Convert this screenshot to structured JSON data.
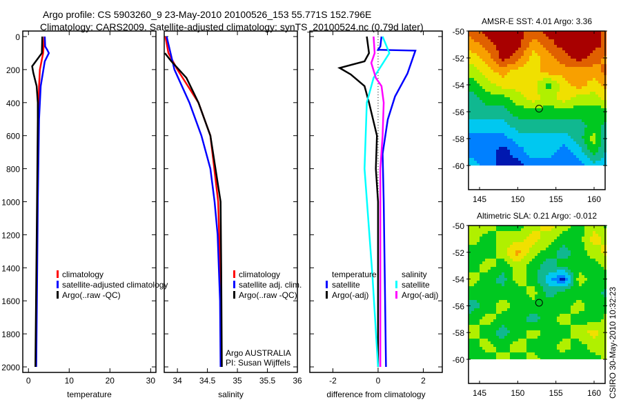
{
  "chart_data": {
    "title_line1": "Argo profile: CS 5903260_9 23-May-2010 20100526_153 55.771S 152.796E",
    "title_line2": "Climatology: CARS2009. Satellite-adjusted climatology: synTS_20100524.nc (0.79d later)",
    "side_label": "CSIRO 30-May-2010 10:32:23",
    "credit": [
      "Argo AUSTRALIA",
      "PI: Susan Wijffels"
    ],
    "colors": {
      "climatology": "#ff0000",
      "satellite": "#0000ff",
      "argo": "#000000",
      "cyan": "#00ffff",
      "magenta": "#ff00ff"
    },
    "profiles": [
      {
        "type": "line",
        "xlabel": "temperature",
        "xlim": [
          -1.4,
          31.3
        ],
        "ylim": [
          0,
          2035
        ],
        "xticks": [
          0,
          10,
          20,
          30
        ],
        "yticks": [
          0,
          200,
          400,
          600,
          800,
          1000,
          1200,
          1400,
          1600,
          1800,
          2000
        ],
        "legend": [
          "climatology",
          "satellite-adjusted climatology",
          "Argo(..raw -QC)"
        ],
        "series": [
          {
            "name": "climatology",
            "color": "#ff0000",
            "depth": [
              0,
              100,
              200,
              300,
              400,
              600,
              1000,
              1400,
              2000
            ],
            "values": [
              3.9,
              3.6,
              2.8,
              2.6,
              2.5,
              2.4,
              2.2,
              2.0,
              1.8
            ]
          },
          {
            "name": "satellite-adjusted climatology",
            "color": "#0000ff",
            "depth": [
              0,
              60,
              80,
              100,
              150,
              300,
              500,
              1000,
              1500,
              2000
            ],
            "values": [
              4.0,
              4.1,
              4.6,
              5.0,
              4.0,
              3.0,
              2.6,
              2.3,
              2.1,
              1.9
            ]
          },
          {
            "name": "Argo(..raw -QC)",
            "color": "#000000",
            "depth": [
              0,
              100,
              150,
              180,
              220,
              300,
              400,
              500,
              1000,
              1500,
              2000
            ],
            "values": [
              3.4,
              3.3,
              1.8,
              0.9,
              1.2,
              2.0,
              2.3,
              2.3,
              2.1,
              1.9,
              1.7
            ]
          }
        ]
      },
      {
        "type": "line",
        "xlabel": "salinity",
        "xlim": [
          33.78,
          36.0
        ],
        "ylim": [
          0,
          2035
        ],
        "xticks": [
          34,
          34.5,
          35,
          35.5,
          36
        ],
        "legend": [
          "climatology",
          "satellite adj. clim.",
          "Argo(..raw -QC)"
        ],
        "series": [
          {
            "name": "climatology",
            "color": "#ff0000",
            "depth": [
              0,
              100,
              200,
              400,
              600,
              1000,
              1500,
              2000
            ],
            "values": [
              33.8,
              33.85,
              34.0,
              34.35,
              34.55,
              34.68,
              34.72,
              34.73
            ]
          },
          {
            "name": "satellite adj. clim.",
            "color": "#0000ff",
            "depth": [
              0,
              200,
              400,
              600,
              800,
              1000,
              1200,
              1600,
              2000
            ],
            "values": [
              33.82,
              33.95,
              34.2,
              34.4,
              34.55,
              34.62,
              34.67,
              34.71,
              34.72
            ]
          },
          {
            "name": "Argo(..raw -QC)",
            "color": "#000000",
            "depth": [
              100,
              150,
              250,
              400,
              600,
              1000,
              1400,
              2000
            ],
            "values": [
              33.79,
              33.9,
              34.15,
              34.35,
              34.55,
              34.72,
              34.73,
              34.74
            ]
          }
        ]
      },
      {
        "type": "line",
        "xlabel": "difference from climatology",
        "xlim": [
          -3.02,
          2.84
        ],
        "ylim": [
          0,
          2035
        ],
        "xticks": [
          -2,
          0,
          2
        ],
        "legend_left": [
          "temperature",
          "satellite",
          "Argo(-adj)"
        ],
        "legend_right": [
          "salinity",
          "satellite",
          "Argo(-adj)"
        ],
        "series": [
          {
            "name": "temperature satellite",
            "color": "#0000ff",
            "depth": [
              0,
              60,
              80,
              85,
              224,
              363,
              502,
              710,
              1000,
              1500,
              2000
            ],
            "values": [
              0.15,
              0.1,
              0.0,
              1.65,
              1.3,
              0.75,
              0.43,
              0.2,
              0.25,
              0.3,
              0.35
            ]
          },
          {
            "name": "temperature Argo(-adj)",
            "color": "#000000",
            "depth": [
              0,
              100,
              150,
              190,
              230,
              300,
              400,
              600,
              800,
              1000,
              2000
            ],
            "values": [
              -0.5,
              -0.4,
              -0.6,
              -1.7,
              -1.2,
              -0.6,
              -0.4,
              -0.05,
              -0.1,
              0,
              0
            ]
          },
          {
            "name": "salinity satellite",
            "color": "#00ffff",
            "depth": [
              0,
              100,
              250,
              400,
              800,
              1450,
              2000
            ],
            "values": [
              0.2,
              0.5,
              -0.2,
              -0.5,
              -0.6,
              -0.25,
              0
            ]
          },
          {
            "name": "salinity Argo(-adj)",
            "color": "#ff00ff",
            "depth": [
              0,
              100,
              160,
              250,
              300,
              400,
              600,
              800,
              1000,
              2000
            ],
            "values": [
              -0.2,
              -0.15,
              -0.3,
              -0.1,
              0.15,
              0.25,
              0.2,
              0.1,
              0.1,
              0.1
            ]
          }
        ]
      }
    ],
    "maps": [
      {
        "type": "heatmap",
        "title": "AMSR-E SST: 4.01 Argo: 3.36",
        "xticks": [
          145,
          150,
          155,
          160
        ],
        "yticks": [
          -50,
          -52,
          -54,
          -56,
          -58,
          -60
        ],
        "lon": [
          144,
          146,
          148,
          150,
          152,
          154,
          156,
          158,
          160,
          162
        ],
        "lat": [
          -50,
          -51,
          -52,
          -53,
          -54,
          -55,
          -56,
          -57,
          -58,
          -59,
          -60
        ],
        "levels": [
          [
            8,
            9,
            9,
            9,
            8,
            9,
            9,
            9,
            9,
            8
          ],
          [
            7,
            8,
            9,
            9,
            7,
            8,
            9,
            9,
            9,
            8
          ],
          [
            6,
            7,
            9,
            8,
            6,
            7,
            8,
            9,
            8,
            7
          ],
          [
            5,
            6,
            7,
            6,
            6,
            7,
            7,
            7,
            7,
            8
          ],
          [
            4,
            5,
            6,
            6,
            6,
            4,
            6,
            7,
            6,
            7
          ],
          [
            3,
            4,
            4,
            5,
            6,
            5,
            6,
            5,
            5,
            6
          ],
          [
            3,
            3,
            3,
            4,
            4,
            4,
            4,
            4,
            4,
            4
          ],
          [
            2,
            2,
            2,
            3,
            3,
            3,
            3,
            3,
            4,
            3
          ],
          [
            1,
            1,
            1,
            2,
            2,
            2,
            2,
            3,
            5,
            2
          ],
          [
            1,
            1,
            0,
            1,
            2,
            2,
            1,
            2,
            4,
            2
          ],
          [
            2,
            1,
            0,
            0,
            1,
            1,
            1,
            1,
            2,
            2
          ]
        ],
        "marker": {
          "lon": 152.796,
          "lat": -55.771
        }
      },
      {
        "type": "heatmap",
        "title": "Altimetric SLA: 0.21 Argo: -0.012",
        "xticks": [
          145,
          150,
          155,
          160
        ],
        "yticks": [
          -50,
          -52,
          -54,
          -56,
          -58,
          -60
        ],
        "lon": [
          144,
          146,
          148,
          150,
          152,
          154,
          156,
          158,
          160,
          162
        ],
        "lat": [
          -50,
          -51,
          -52,
          -53,
          -54,
          -55,
          -56,
          -57,
          -58,
          -59,
          -60
        ],
        "levels": [
          [
            5,
            5,
            4,
            4,
            5,
            6,
            5,
            4,
            5,
            4
          ],
          [
            5,
            4,
            5,
            5,
            6,
            5,
            4,
            4,
            6,
            5
          ],
          [
            4,
            4,
            5,
            7,
            5,
            4,
            3,
            4,
            5,
            6
          ],
          [
            4,
            5,
            4,
            5,
            4,
            3,
            4,
            4,
            4,
            5
          ],
          [
            5,
            4,
            3,
            5,
            4,
            2,
            0,
            5,
            4,
            4
          ],
          [
            4,
            4,
            4,
            4,
            5,
            3,
            4,
            4,
            4,
            3
          ],
          [
            3,
            4,
            5,
            4,
            4,
            4,
            4,
            5,
            4,
            4
          ],
          [
            4,
            5,
            4,
            4,
            3,
            4,
            5,
            4,
            4,
            5
          ],
          [
            5,
            4,
            3,
            4,
            5,
            4,
            4,
            5,
            6,
            4
          ],
          [
            4,
            5,
            4,
            5,
            4,
            4,
            5,
            4,
            5,
            5
          ],
          [
            4,
            4,
            5,
            4,
            5,
            4,
            4,
            4,
            4,
            5
          ]
        ],
        "marker": {
          "lon": 152.796,
          "lat": -55.771
        }
      }
    ],
    "palette": [
      "#0018b0",
      "#0080ff",
      "#00c8f0",
      "#10b890",
      "#00c820",
      "#b0f000",
      "#f0e000",
      "#f8a000",
      "#e06000",
      "#a80000"
    ]
  }
}
